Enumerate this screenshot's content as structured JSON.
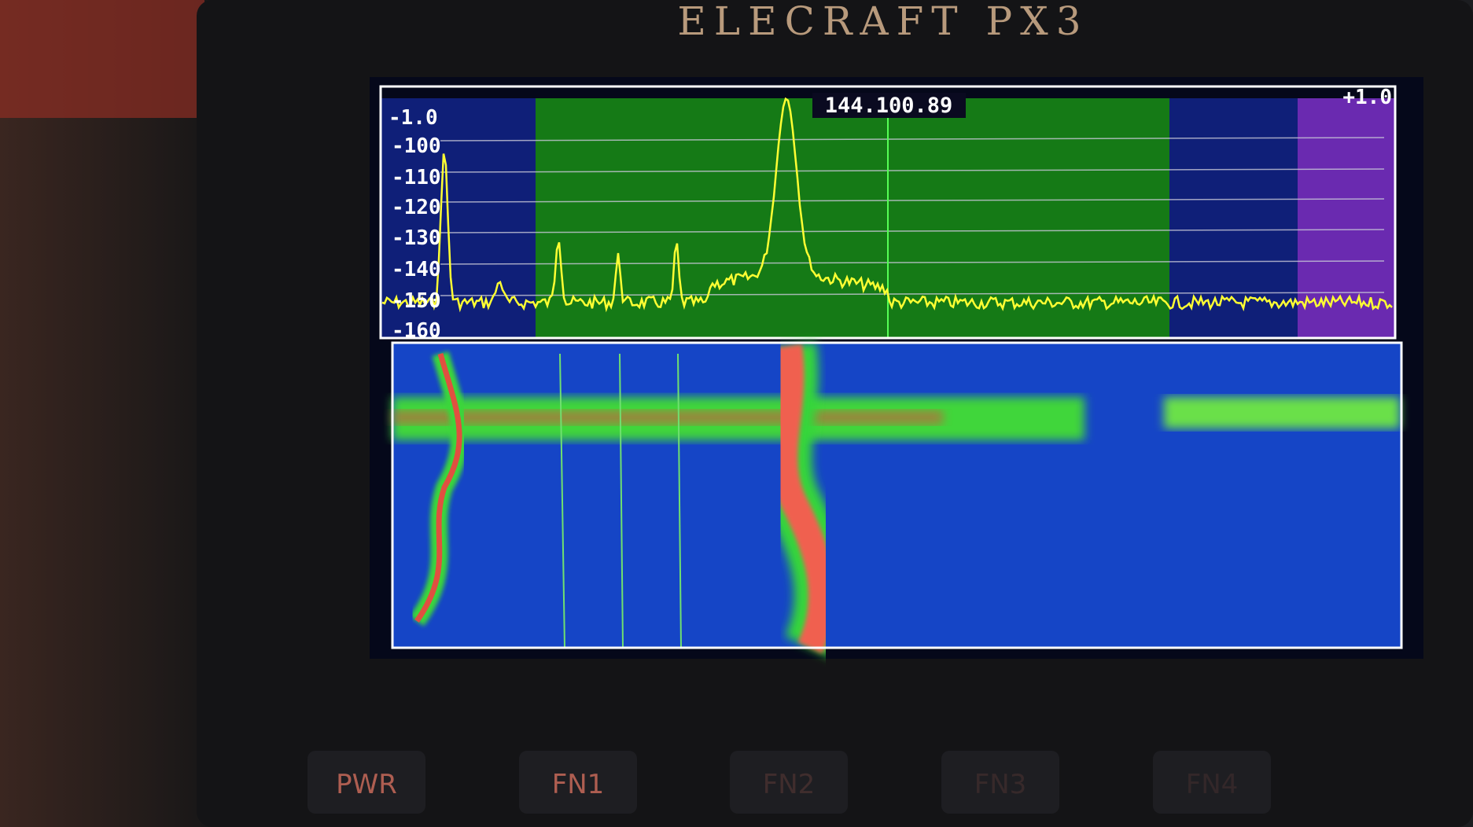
{
  "device": {
    "brand": "ELECRAFT PX3"
  },
  "display": {
    "span_left": "-1.0",
    "span_right": "+1.0",
    "frequency": "144.100.89",
    "level_labels": [
      "-100",
      "-110",
      "-120",
      "-130",
      "-140",
      "-150",
      "-160"
    ]
  },
  "buttons": [
    "PWR",
    "FN1",
    "FN2",
    "FN3",
    "FN4"
  ]
}
